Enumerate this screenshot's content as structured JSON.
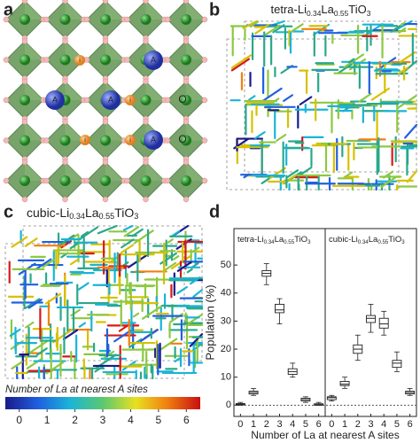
{
  "panels": {
    "a": {
      "label": "a",
      "a_sites": [
        "A",
        "A",
        "A",
        "A"
      ],
      "li_sites": [
        "i",
        "i",
        "i",
        "i"
      ],
      "o_sites": [
        "O",
        "O"
      ]
    },
    "b": {
      "label": "b",
      "title_parts": [
        {
          "t": "tetra-Li"
        },
        {
          "t": "0.34",
          "sub": true
        },
        {
          "t": "La"
        },
        {
          "t": "0.55",
          "sub": true
        },
        {
          "t": "TiO"
        },
        {
          "t": "3",
          "sub": true
        }
      ]
    },
    "c": {
      "label": "c",
      "title_parts": [
        {
          "t": "cubic-Li"
        },
        {
          "t": "0.34",
          "sub": true
        },
        {
          "t": "La"
        },
        {
          "t": "0.55",
          "sub": true
        },
        {
          "t": "TiO"
        },
        {
          "t": "3",
          "sub": true
        }
      ]
    },
    "colorbar": {
      "title": "Number of La at nearest A sites",
      "ticks": [
        0,
        1,
        2,
        3,
        4,
        5,
        6
      ],
      "lim": [
        -0.5,
        6.5
      ],
      "tick_colors": [
        "#1a1a8c",
        "#2060e0",
        "#19b4d8",
        "#2aa88a",
        "#d8c000",
        "#f08010",
        "#d81818"
      ]
    }
  },
  "chart_data": {
    "type": "box",
    "panel_label": "d",
    "categories": [
      "0",
      "1",
      "2",
      "3",
      "4",
      "5",
      "6"
    ],
    "xlabel": "Number of La at nearest A sites",
    "ylabel": "Population (%)",
    "ylim": [
      -4,
      63
    ],
    "yticks": [
      0,
      10,
      20,
      30,
      40,
      50
    ],
    "zero_line": true,
    "series": [
      {
        "name_parts": [
          {
            "t": "tetra-Li"
          },
          {
            "t": "0.34",
            "sub": true
          },
          {
            "t": "La"
          },
          {
            "t": "0.55",
            "sub": true
          },
          {
            "t": "TiO"
          },
          {
            "t": "3",
            "sub": true
          }
        ],
        "color": "#222222",
        "whisker_low": [
          0,
          3.5,
          43,
          29,
          10,
          1,
          0
        ],
        "q1": [
          0.1,
          4,
          46,
          33,
          11,
          1.5,
          0
        ],
        "median": [
          0.3,
          4.5,
          47,
          34,
          12,
          2,
          0.2
        ],
        "q3": [
          0.6,
          5,
          48,
          36,
          13,
          2.5,
          0.5
        ],
        "whisker_high": [
          1,
          6,
          50.5,
          38,
          15,
          3,
          1
        ]
      },
      {
        "name_parts": [
          {
            "t": "cubic-Li"
          },
          {
            "t": "0.34",
            "sub": true
          },
          {
            "t": "La"
          },
          {
            "t": "0.55",
            "sub": true
          },
          {
            "t": "TiO"
          },
          {
            "t": "3",
            "sub": true
          }
        ],
        "color": "#222222",
        "whisker_low": [
          1.5,
          6,
          16,
          26,
          25,
          12,
          3.5
        ],
        "q1": [
          2,
          7,
          18.5,
          29.5,
          27.5,
          13.5,
          4
        ],
        "median": [
          2.7,
          7.5,
          20,
          31,
          29,
          15,
          4.5
        ],
        "q3": [
          3,
          8.5,
          21.5,
          32,
          31,
          16,
          5
        ],
        "whisker_high": [
          3.5,
          10,
          25,
          36,
          33.5,
          19,
          6
        ]
      }
    ]
  }
}
